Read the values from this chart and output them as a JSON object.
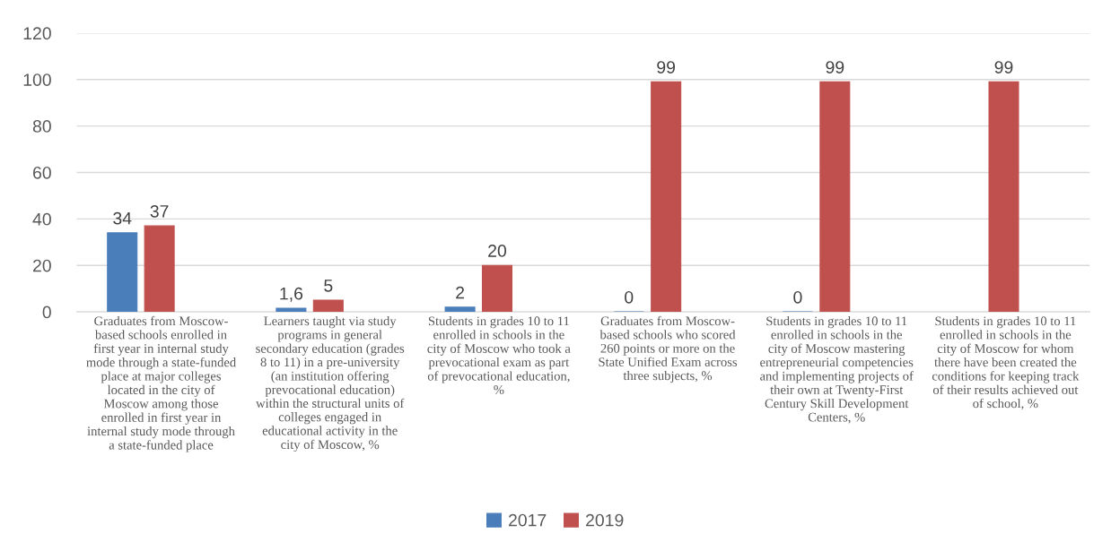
{
  "chart_data": {
    "type": "bar",
    "categories": [
      "Graduates from Moscow-\nbased schools enrolled in\nfirst year in internal study\nmode through a state-funded\nplace at major colleges\nlocated in the city of\nMoscow among those\nenrolled in first year in\ninternal study mode through\na state-funded place",
      "Learners taught via study\nprograms in general\nsecondary education (grades\n8 to 11) in a pre-university\n(an institution offering\nprevocational education)\nwithin the structural units of\ncolleges engaged in\neducational activity in the\ncity of Moscow, %",
      "Students in grades 10 to 11\nenrolled in schools in the\ncity of Moscow who took a\nprevocational exam as part\nof prevocational education,\n%",
      "Graduates from Moscow-\nbased schools who scored\n260 points or more on the\nState Unified Exam across\nthree subjects, %",
      "Students in grades 10 to 11\nenrolled in schools in the\ncity of Moscow mastering\nentrepreneurial competencies\nand implementing projects of\ntheir own at Twenty-First\nCentury Skill Development\nCenters, %",
      "Students in grades 10 to 11\nenrolled in schools in the\ncity of Moscow for whom\nthere have been created the\nconditions for keeping track\nof their results achieved out\nof school, %"
    ],
    "series": [
      {
        "name": "2017",
        "color": "#4a7ebb",
        "values": [
          34,
          1.6,
          2,
          0,
          0,
          null
        ],
        "value_labels": [
          "34",
          "1,6",
          "2",
          "0",
          "0",
          null
        ]
      },
      {
        "name": "2019",
        "color": "#c0504d",
        "values": [
          37,
          5,
          20,
          99,
          99,
          99
        ],
        "value_labels": [
          "37",
          "5",
          "20",
          "99",
          "99",
          "99"
        ]
      }
    ],
    "ylim": [
      0,
      120
    ],
    "yticks": [
      0,
      20,
      40,
      60,
      80,
      100,
      120
    ],
    "grid": "y",
    "legend": "bottom"
  }
}
